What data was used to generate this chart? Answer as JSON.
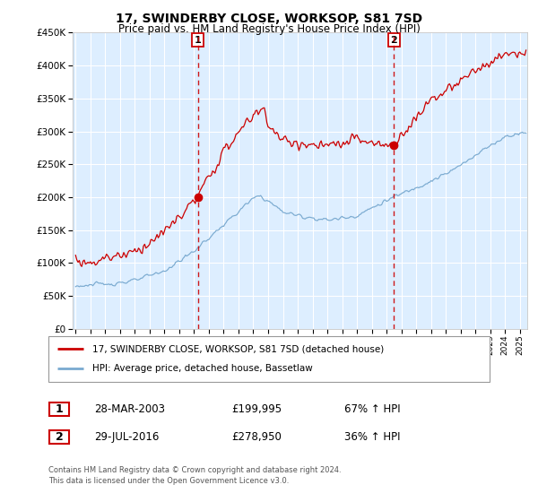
{
  "title": "17, SWINDERBY CLOSE, WORKSOP, S81 7SD",
  "subtitle": "Price paid vs. HM Land Registry's House Price Index (HPI)",
  "legend_line1": "17, SWINDERBY CLOSE, WORKSOP, S81 7SD (detached house)",
  "legend_line2": "HPI: Average price, detached house, Bassetlaw",
  "footer1": "Contains HM Land Registry data © Crown copyright and database right 2024.",
  "footer2": "This data is licensed under the Open Government Licence v3.0.",
  "marker1_date": "28-MAR-2003",
  "marker1_price": "£199,995",
  "marker1_hpi": "67% ↑ HPI",
  "marker2_date": "29-JUL-2016",
  "marker2_price": "£278,950",
  "marker2_hpi": "36% ↑ HPI",
  "red_color": "#cc0000",
  "blue_color": "#7aaad0",
  "bg_color": "#ddeeff",
  "grid_color": "#ffffff",
  "sale1_year": 2003.23,
  "sale1_price": 199995,
  "sale2_year": 2016.54,
  "sale2_price": 278950,
  "ylim_max": 450000,
  "xlim_start": 1994.8,
  "xlim_end": 2025.5
}
